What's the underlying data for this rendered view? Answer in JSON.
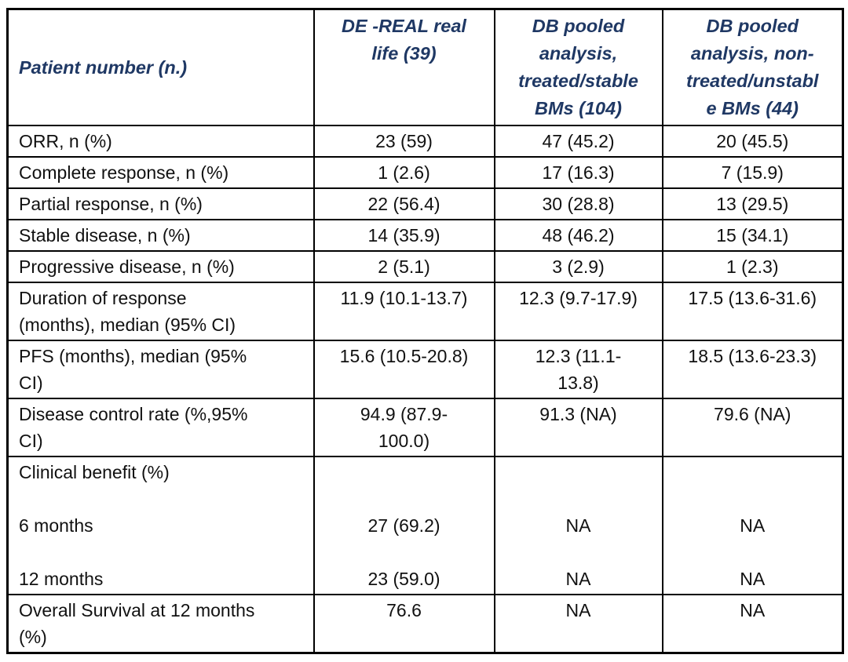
{
  "table": {
    "colors": {
      "header_text": "#1F3864",
      "body_text": "#111111",
      "border": "#000000",
      "background": "#ffffff"
    },
    "header": {
      "row_label": {
        "lines": [
          "Patient number (n.)"
        ]
      },
      "columns": [
        {
          "lines": [
            "DE -REAL real",
            "life (39)"
          ]
        },
        {
          "lines": [
            "DB pooled",
            "analysis,",
            "treated/stable",
            "BMs (104)"
          ]
        },
        {
          "lines": [
            "DB pooled",
            "analysis, non-",
            "treated/unstabl",
            "e BMs (44)"
          ]
        }
      ]
    },
    "rows": [
      {
        "label": [
          "ORR, n (%)"
        ],
        "values": [
          [
            "23 (59)"
          ],
          [
            "47 (45.2)"
          ],
          [
            "20 (45.5)"
          ]
        ]
      },
      {
        "label": [
          "Complete response, n (%)"
        ],
        "values": [
          [
            "1 (2.6)"
          ],
          [
            "17 (16.3)"
          ],
          [
            "7 (15.9)"
          ]
        ]
      },
      {
        "label": [
          "Partial response, n (%)"
        ],
        "values": [
          [
            "22 (56.4)"
          ],
          [
            "30 (28.8)"
          ],
          [
            "13 (29.5)"
          ]
        ]
      },
      {
        "label": [
          "Stable disease, n (%)"
        ],
        "values": [
          [
            "14 (35.9)"
          ],
          [
            "48 (46.2)"
          ],
          [
            "15 (34.1)"
          ]
        ]
      },
      {
        "label": [
          "Progressive disease, n (%)"
        ],
        "values": [
          [
            "2 (5.1)"
          ],
          [
            "3 (2.9)"
          ],
          [
            "1 (2.3)"
          ]
        ]
      },
      {
        "label": [
          "Duration of response",
          "(months), median (95% CI)"
        ],
        "values": [
          [
            "11.9 (10.1-13.7)"
          ],
          [
            "12.3 (9.7-17.9)"
          ],
          [
            "17.5 (13.6-31.6)"
          ]
        ]
      },
      {
        "label": [
          "PFS (months), median (95%",
          "CI)"
        ],
        "values": [
          [
            "15.6 (10.5-20.8)"
          ],
          [
            "12.3 (11.1-",
            "13.8)"
          ],
          [
            "18.5 (13.6-23.3)"
          ]
        ]
      },
      {
        "label": [
          "Disease control rate (%,95%",
          "CI)"
        ],
        "values": [
          [
            "94.9 (87.9-",
            "100.0)"
          ],
          [
            "91.3 (NA)"
          ],
          [
            "79.6 (NA)"
          ]
        ]
      },
      {
        "label": [
          "Clinical benefit (%)",
          "",
          "6 months",
          "",
          "12 months"
        ],
        "values": [
          [
            "",
            "",
            "27 (69.2)",
            "",
            "23 (59.0)"
          ],
          [
            "",
            "",
            "NA",
            "",
            "NA"
          ],
          [
            "",
            "",
            "NA",
            "",
            "NA"
          ]
        ]
      },
      {
        "label": [
          "Overall Survival at 12 months",
          "(%)"
        ],
        "values": [
          [
            "76.6"
          ],
          [
            "NA"
          ],
          [
            "NA"
          ]
        ]
      }
    ]
  },
  "chart_data": {
    "type": "table",
    "title": "",
    "columns": [
      "Patient number (n.)",
      "DE -REAL real life (39)",
      "DB pooled analysis, treated/stable BMs (104)",
      "DB pooled analysis, non-treated/unstable BMs (44)"
    ],
    "rows": [
      [
        "ORR, n (%)",
        "23 (59)",
        "47 (45.2)",
        "20 (45.5)"
      ],
      [
        "Complete response, n (%)",
        "1 (2.6)",
        "17 (16.3)",
        "7 (15.9)"
      ],
      [
        "Partial response, n (%)",
        "22 (56.4)",
        "30 (28.8)",
        "13 (29.5)"
      ],
      [
        "Stable disease, n (%)",
        "14 (35.9)",
        "48 (46.2)",
        "15 (34.1)"
      ],
      [
        "Progressive disease, n (%)",
        "2 (5.1)",
        "3 (2.9)",
        "1 (2.3)"
      ],
      [
        "Duration of response (months), median (95% CI)",
        "11.9 (10.1-13.7)",
        "12.3 (9.7-17.9)",
        "17.5 (13.6-31.6)"
      ],
      [
        "PFS (months), median (95% CI)",
        "15.6 (10.5-20.8)",
        "12.3 (11.1-13.8)",
        "18.5 (13.6-23.3)"
      ],
      [
        "Disease control rate (%,95% CI)",
        "94.9 (87.9-100.0)",
        "91.3 (NA)",
        "79.6 (NA)"
      ],
      [
        "Clinical benefit (%) 6 months",
        "27 (69.2)",
        "NA",
        "NA"
      ],
      [
        "Clinical benefit (%) 12 months",
        "23 (59.0)",
        "NA",
        "NA"
      ],
      [
        "Overall Survival at 12 months (%)",
        "76.6",
        "NA",
        "NA"
      ]
    ]
  }
}
